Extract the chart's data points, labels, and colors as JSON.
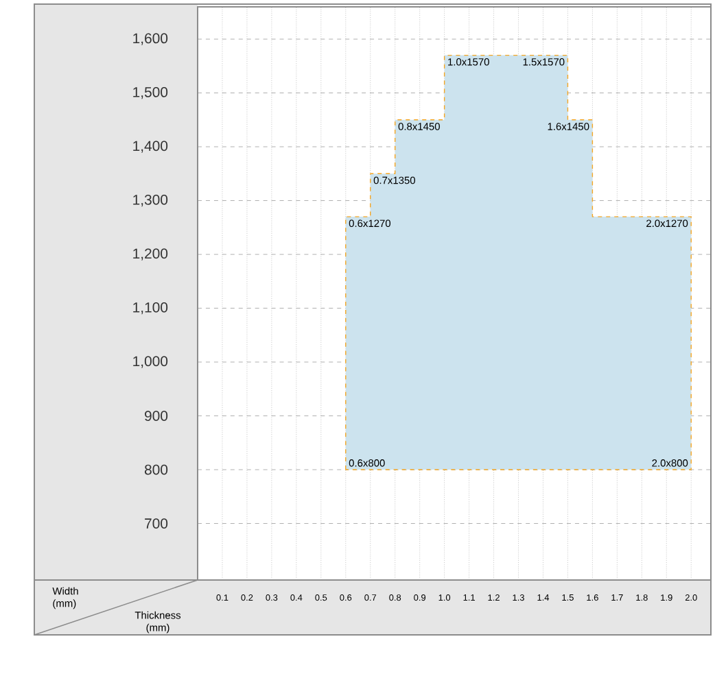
{
  "chart_data": {
    "type": "area",
    "xlim": [
      0,
      2.08
    ],
    "ylim": [
      595,
      1660
    ],
    "xticks": [
      0.1,
      0.2,
      0.3,
      0.4,
      0.5,
      0.6,
      0.7,
      0.8,
      0.9,
      {
        "value": 1.0,
        "label": "1.0"
      },
      1.1,
      1.2,
      1.3,
      1.4,
      1.5,
      1.6,
      1.7,
      1.8,
      1.9,
      {
        "value": 2.0,
        "label": "2.0"
      }
    ],
    "yticks": [
      700,
      800,
      900,
      {
        "value": 1000,
        "label": "1,000"
      },
      {
        "value": 1100,
        "label": "1,100"
      },
      {
        "value": 1200,
        "label": "1,200"
      },
      {
        "value": 1300,
        "label": "1,300"
      },
      {
        "value": 1400,
        "label": "1,400"
      },
      {
        "value": 1500,
        "label": "1,500"
      },
      {
        "value": 1600,
        "label": "1,600"
      }
    ],
    "grid": true,
    "series": [
      {
        "color": "#cce3ee",
        "line_style": "dashed",
        "x": [
          0.6,
          0.6,
          0.7,
          0.7,
          0.8,
          0.8,
          1.0,
          1.0,
          1.5,
          1.5,
          1.6,
          1.6,
          2.0,
          2.0
        ],
        "values": [
          800,
          1270,
          1270,
          1350,
          1350,
          1450,
          1450,
          1570,
          1570,
          1450,
          1450,
          1270,
          1270,
          800
        ]
      }
    ],
    "annotations": [
      "Width (mm)",
      "Thickness (mm)",
      {
        "text": "0.6x1270",
        "x": 0.6,
        "y": 1270
      },
      {
        "text": "0.7x1350",
        "x": 0.7,
        "y": 1350
      },
      {
        "text": "0.8x1450",
        "x": 0.8,
        "y": 1450
      },
      {
        "text": "1.0x1570",
        "x": 1.0,
        "y": 1570
      },
      {
        "text": "1.5x1570",
        "x": 1.5,
        "y": 1570
      },
      {
        "text": "1.6x1450",
        "x": 1.6,
        "y": 1450
      },
      {
        "text": "2.0x1270",
        "x": 2.0,
        "y": 1270
      },
      {
        "text": "0.6x800",
        "x": 0.6,
        "y": 800
      },
      {
        "text": "2.0x800",
        "x": 2.0,
        "y": 800
      }
    ]
  }
}
